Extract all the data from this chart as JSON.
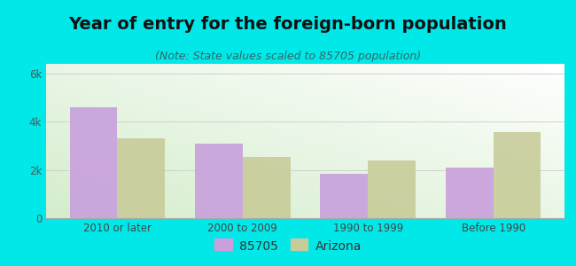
{
  "title": "Year of entry for the foreign-born population",
  "subtitle": "(Note: State values scaled to 85705 population)",
  "categories": [
    "2010 or later",
    "2000 to 2009",
    "1990 to 1999",
    "Before 1990"
  ],
  "values_85705": [
    4600,
    3100,
    1850,
    2100
  ],
  "values_arizona": [
    3300,
    2550,
    2400,
    3550
  ],
  "color_85705": "#c9a0dc",
  "color_arizona": "#c8cc9a",
  "background_outer": "#00e8e8",
  "ylim": [
    0,
    6400
  ],
  "yticks": [
    0,
    2000,
    4000,
    6000
  ],
  "ytick_labels": [
    "0",
    "2k",
    "4k",
    "6k"
  ],
  "legend_label_1": "85705",
  "legend_label_2": "Arizona",
  "bar_width": 0.38,
  "title_fontsize": 14,
  "subtitle_fontsize": 9,
  "tick_fontsize": 8.5,
  "legend_fontsize": 10
}
